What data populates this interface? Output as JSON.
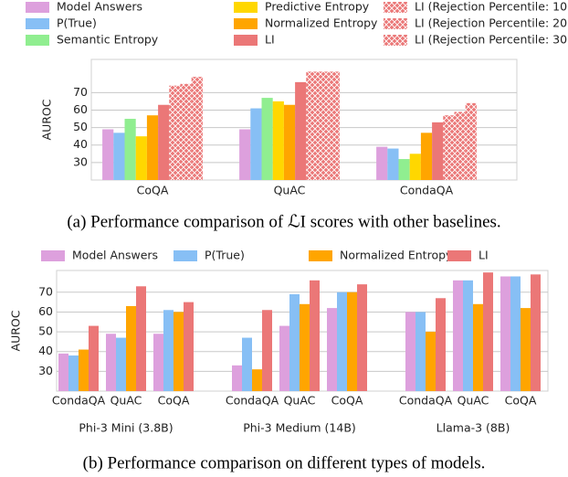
{
  "chart_data": [
    {
      "type": "bar",
      "caption": "(a) Performance comparison of ℒI scores with other baselines.",
      "ylabel": "AUROC",
      "categories": [
        "CoQA",
        "QuAC",
        "CondaQA"
      ],
      "series": [
        {
          "name": "Model Answers",
          "color": "#dda0dd",
          "values": [
            49,
            49,
            39
          ]
        },
        {
          "name": "P(True)",
          "color": "#87bff5",
          "values": [
            47,
            61,
            38
          ]
        },
        {
          "name": "Semantic Entropy",
          "color": "#90ee90",
          "values": [
            55,
            67,
            32
          ]
        },
        {
          "name": "Predictive Entropy",
          "color": "#ffd700",
          "values": [
            45,
            65,
            35
          ]
        },
        {
          "name": "Normalized Entropy",
          "color": "#ffa500",
          "values": [
            57,
            63,
            47
          ]
        },
        {
          "name": "LI",
          "color": "#eb7777",
          "values": [
            63,
            76,
            53
          ]
        },
        {
          "name": "LI (Rejection Percentile: 10)",
          "color": "#eb7777",
          "hatch": "x",
          "values": [
            74,
            82,
            57
          ]
        },
        {
          "name": "LI (Rejection Percentile: 20)",
          "color": "#eb7777",
          "hatch": "x",
          "values": [
            75,
            82,
            59
          ]
        },
        {
          "name": "LI (Rejection Percentile: 30)",
          "color": "#eb7777",
          "hatch": "x",
          "values": [
            79,
            82,
            64
          ]
        }
      ],
      "ylim": [
        20,
        89
      ],
      "yticks": [
        30,
        40,
        50,
        60,
        70
      ],
      "grid": true
    },
    {
      "type": "bar",
      "caption": "(b) Performance comparison on different types of models.",
      "ylabel": "AUROC",
      "groups": [
        "Phi-3 Mini (3.8B)",
        "Phi-3 Medium (14B)",
        "Llama-3 (8B)"
      ],
      "categories": [
        "CondaQA",
        "QuAC",
        "CoQA",
        "CondaQA",
        "QuAC",
        "CoQA",
        "CondaQA",
        "QuAC",
        "CoQA"
      ],
      "series": [
        {
          "name": "Model Answers",
          "color": "#dda0dd",
          "values": [
            39,
            49,
            49,
            33,
            53,
            62,
            60,
            76,
            78
          ]
        },
        {
          "name": "P(True)",
          "color": "#87bff5",
          "values": [
            38,
            47,
            61,
            47,
            69,
            70,
            60,
            76,
            78
          ]
        },
        {
          "name": "Normalized Entropy",
          "color": "#ffa500",
          "values": [
            41,
            63,
            60,
            31,
            64,
            70,
            50,
            64,
            62
          ]
        },
        {
          "name": "LI",
          "color": "#eb7777",
          "values": [
            53,
            73,
            65,
            61,
            76,
            74,
            67,
            80,
            79
          ]
        }
      ],
      "ylim": [
        20,
        81
      ],
      "yticks": [
        30,
        40,
        50,
        60,
        70
      ],
      "grid": true
    }
  ]
}
